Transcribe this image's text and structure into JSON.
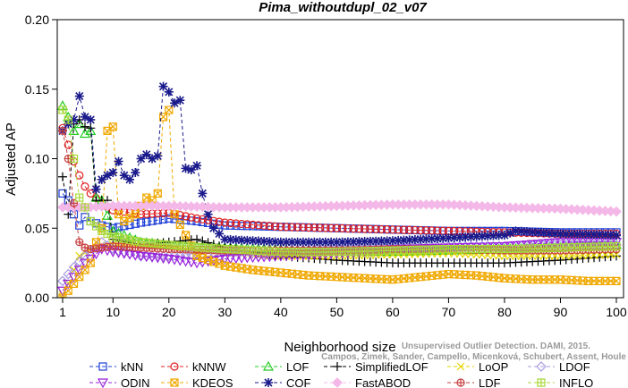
{
  "chart_data": {
    "type": "line",
    "title": "Pima_withoutdupl_02_v07",
    "xlabel": "Neighborhood size",
    "ylabel": "Adjusted AP",
    "xlim": [
      1,
      100
    ],
    "ylim": [
      0,
      0.2
    ],
    "x_ticks": [
      1,
      10,
      20,
      30,
      40,
      50,
      60,
      70,
      80,
      90,
      100
    ],
    "y_ticks": [
      0.0,
      0.05,
      0.1,
      0.15,
      0.2
    ],
    "y_tick_labels": [
      "0.00",
      "0.05",
      "0.10",
      "0.15",
      "0.20"
    ],
    "grid": false,
    "legend_position": "bottom",
    "watermark": [
      "Campos, Zimek, Sander, Campello, Micenková, Schubert, Assent, Houle",
      "Unsupervised Outlier Detection. DAMI, 2015."
    ],
    "series": [
      {
        "name": "kNN",
        "color": "#1f3fd6",
        "marker": "square",
        "points": [
          [
            1,
            0.075
          ],
          [
            2,
            0.07
          ],
          [
            3,
            0.06
          ],
          [
            4,
            0.052
          ],
          [
            5,
            0.058
          ],
          [
            6,
            0.055
          ],
          [
            8,
            0.052
          ],
          [
            10,
            0.05
          ],
          [
            15,
            0.054
          ],
          [
            20,
            0.057
          ],
          [
            25,
            0.055
          ],
          [
            30,
            0.052
          ],
          [
            40,
            0.051
          ],
          [
            50,
            0.05
          ],
          [
            60,
            0.049
          ],
          [
            70,
            0.048
          ],
          [
            80,
            0.048
          ],
          [
            90,
            0.047
          ],
          [
            100,
            0.047
          ]
        ]
      },
      {
        "name": "kNNW",
        "color": "#e01f1f",
        "marker": "circle",
        "points": [
          [
            1,
            0.122
          ],
          [
            2,
            0.11
          ],
          [
            3,
            0.098
          ],
          [
            4,
            0.088
          ],
          [
            5,
            0.08
          ],
          [
            6,
            0.075
          ],
          [
            8,
            0.068
          ],
          [
            10,
            0.063
          ],
          [
            15,
            0.06
          ],
          [
            20,
            0.061
          ],
          [
            25,
            0.057
          ],
          [
            30,
            0.054
          ],
          [
            40,
            0.051
          ],
          [
            50,
            0.05
          ],
          [
            60,
            0.049
          ],
          [
            70,
            0.048
          ],
          [
            80,
            0.047
          ],
          [
            90,
            0.046
          ],
          [
            100,
            0.046
          ]
        ]
      },
      {
        "name": "LOF",
        "color": "#22cc22",
        "marker": "triangle-up",
        "points": [
          [
            1,
            0.138
          ],
          [
            2,
            0.13
          ],
          [
            3,
            0.12
          ],
          [
            4,
            0.125
          ],
          [
            5,
            0.118
          ],
          [
            6,
            0.12
          ],
          [
            7,
            0.072
          ],
          [
            8,
            0.07
          ],
          [
            10,
            0.048
          ],
          [
            15,
            0.04
          ],
          [
            20,
            0.038
          ],
          [
            30,
            0.036
          ],
          [
            40,
            0.035
          ],
          [
            50,
            0.033
          ],
          [
            60,
            0.033
          ],
          [
            70,
            0.034
          ],
          [
            80,
            0.035
          ],
          [
            90,
            0.036
          ],
          [
            100,
            0.038
          ]
        ]
      },
      {
        "name": "SimplifiedLOF",
        "color": "#000000",
        "marker": "plus",
        "points": [
          [
            1,
            0.087
          ],
          [
            2,
            0.06
          ],
          [
            3,
            0.125
          ],
          [
            4,
            0.128
          ],
          [
            5,
            0.123
          ],
          [
            6,
            0.122
          ],
          [
            7,
            0.07
          ],
          [
            8,
            0.07
          ],
          [
            9,
            0.07
          ],
          [
            10,
            0.042
          ],
          [
            15,
            0.038
          ],
          [
            20,
            0.04
          ],
          [
            25,
            0.042
          ],
          [
            30,
            0.036
          ],
          [
            40,
            0.03
          ],
          [
            50,
            0.027
          ],
          [
            60,
            0.025
          ],
          [
            70,
            0.025
          ],
          [
            80,
            0.025
          ],
          [
            90,
            0.027
          ],
          [
            100,
            0.03
          ]
        ]
      },
      {
        "name": "LoOP",
        "color": "#e6d400",
        "marker": "x",
        "points": [
          [
            1,
            0.002
          ],
          [
            2,
            0.01
          ],
          [
            3,
            0.02
          ],
          [
            4,
            0.03
          ],
          [
            6,
            0.035
          ],
          [
            8,
            0.037
          ],
          [
            10,
            0.038
          ],
          [
            20,
            0.036
          ],
          [
            30,
            0.032
          ],
          [
            40,
            0.03
          ],
          [
            50,
            0.03
          ],
          [
            60,
            0.031
          ],
          [
            70,
            0.032
          ],
          [
            80,
            0.03
          ],
          [
            90,
            0.03
          ],
          [
            100,
            0.031
          ]
        ]
      },
      {
        "name": "LDOF",
        "color": "#a89ae0",
        "marker": "diamond",
        "points": [
          [
            1,
            0.012
          ],
          [
            3,
            0.022
          ],
          [
            5,
            0.03
          ],
          [
            8,
            0.04
          ],
          [
            10,
            0.035
          ],
          [
            15,
            0.03
          ],
          [
            20,
            0.03
          ],
          [
            30,
            0.033
          ],
          [
            40,
            0.034
          ],
          [
            50,
            0.035
          ],
          [
            60,
            0.036
          ],
          [
            70,
            0.037
          ],
          [
            80,
            0.037
          ],
          [
            90,
            0.038
          ],
          [
            100,
            0.038
          ]
        ]
      },
      {
        "name": "ODIN",
        "color": "#9922dd",
        "marker": "triangle-down",
        "points": [
          [
            1,
            0.005
          ],
          [
            2,
            0.01
          ],
          [
            3,
            0.015
          ],
          [
            4,
            0.02
          ],
          [
            5,
            0.025
          ],
          [
            6,
            0.028
          ],
          [
            8,
            0.035
          ],
          [
            10,
            0.033
          ],
          [
            15,
            0.03
          ],
          [
            20,
            0.028
          ],
          [
            25,
            0.025
          ],
          [
            30,
            0.028
          ],
          [
            40,
            0.03
          ],
          [
            50,
            0.032
          ],
          [
            60,
            0.035
          ],
          [
            70,
            0.036
          ],
          [
            80,
            0.037
          ],
          [
            90,
            0.04
          ],
          [
            100,
            0.04
          ]
        ]
      },
      {
        "name": "KDEOS",
        "color": "#f0a800",
        "marker": "square-x",
        "points": [
          [
            1,
            0.0
          ],
          [
            2,
            0.005
          ],
          [
            3,
            0.01
          ],
          [
            4,
            0.015
          ],
          [
            5,
            0.02
          ],
          [
            6,
            0.025
          ],
          [
            7,
            0.04
          ],
          [
            8,
            0.05
          ],
          [
            9,
            0.12
          ],
          [
            10,
            0.123
          ],
          [
            11,
            0.06
          ],
          [
            12,
            0.055
          ],
          [
            14,
            0.06
          ],
          [
            16,
            0.072
          ],
          [
            17,
            0.07
          ],
          [
            18,
            0.075
          ],
          [
            19,
            0.13
          ],
          [
            20,
            0.135
          ],
          [
            21,
            0.06
          ],
          [
            25,
            0.03
          ],
          [
            30,
            0.023
          ],
          [
            35,
            0.02
          ],
          [
            40,
            0.018
          ],
          [
            45,
            0.016
          ],
          [
            50,
            0.015
          ],
          [
            55,
            0.014
          ],
          [
            60,
            0.013
          ],
          [
            65,
            0.015
          ],
          [
            70,
            0.017
          ],
          [
            75,
            0.016
          ],
          [
            80,
            0.014
          ],
          [
            85,
            0.013
          ],
          [
            90,
            0.013
          ],
          [
            95,
            0.012
          ],
          [
            100,
            0.012
          ]
        ]
      },
      {
        "name": "COF",
        "color": "#1a1a8c",
        "marker": "star",
        "points": [
          [
            1,
            0.12
          ],
          [
            2,
            0.125
          ],
          [
            3,
            0.128
          ],
          [
            4,
            0.145
          ],
          [
            5,
            0.13
          ],
          [
            6,
            0.128
          ],
          [
            7,
            0.078
          ],
          [
            8,
            0.085
          ],
          [
            9,
            0.088
          ],
          [
            10,
            0.09
          ],
          [
            11,
            0.098
          ],
          [
            12,
            0.088
          ],
          [
            13,
            0.085
          ],
          [
            14,
            0.09
          ],
          [
            15,
            0.1
          ],
          [
            16,
            0.103
          ],
          [
            17,
            0.1
          ],
          [
            18,
            0.102
          ],
          [
            19,
            0.152
          ],
          [
            20,
            0.148
          ],
          [
            21,
            0.14
          ],
          [
            22,
            0.142
          ],
          [
            23,
            0.093
          ],
          [
            24,
            0.092
          ],
          [
            25,
            0.095
          ],
          [
            26,
            0.075
          ],
          [
            27,
            0.06
          ],
          [
            28,
            0.05
          ],
          [
            30,
            0.042
          ],
          [
            40,
            0.04
          ],
          [
            50,
            0.04
          ],
          [
            60,
            0.041
          ],
          [
            70,
            0.043
          ],
          [
            80,
            0.045
          ],
          [
            82,
            0.048
          ],
          [
            90,
            0.046
          ],
          [
            100,
            0.045
          ]
        ]
      },
      {
        "name": "FastABOD",
        "color": "#f4b8e8",
        "marker": "diamond-filled",
        "points": [
          [
            1,
            0.065
          ],
          [
            5,
            0.065
          ],
          [
            10,
            0.066
          ],
          [
            20,
            0.066
          ],
          [
            30,
            0.065
          ],
          [
            40,
            0.065
          ],
          [
            50,
            0.066
          ],
          [
            60,
            0.067
          ],
          [
            70,
            0.067
          ],
          [
            80,
            0.065
          ],
          [
            90,
            0.064
          ],
          [
            100,
            0.062
          ]
        ]
      },
      {
        "name": "LDF",
        "color": "#c84040",
        "marker": "circle-plus",
        "points": [
          [
            1,
            0.12
          ],
          [
            2,
            0.1
          ],
          [
            3,
            0.068
          ],
          [
            4,
            0.04
          ],
          [
            5,
            0.036
          ],
          [
            6,
            0.035
          ],
          [
            8,
            0.036
          ],
          [
            10,
            0.037
          ],
          [
            15,
            0.036
          ],
          [
            20,
            0.035
          ],
          [
            30,
            0.034
          ],
          [
            40,
            0.034
          ],
          [
            50,
            0.034
          ],
          [
            60,
            0.035
          ],
          [
            70,
            0.035
          ],
          [
            80,
            0.034
          ],
          [
            90,
            0.034
          ],
          [
            100,
            0.035
          ]
        ]
      },
      {
        "name": "INFLO",
        "color": "#a8d838",
        "marker": "square-plus",
        "points": [
          [
            1,
            0.135
          ],
          [
            2,
            0.128
          ],
          [
            3,
            0.1
          ],
          [
            4,
            0.072
          ],
          [
            5,
            0.065
          ],
          [
            6,
            0.055
          ],
          [
            8,
            0.048
          ],
          [
            10,
            0.044
          ],
          [
            15,
            0.04
          ],
          [
            20,
            0.038
          ],
          [
            30,
            0.035
          ],
          [
            40,
            0.033
          ],
          [
            50,
            0.033
          ],
          [
            60,
            0.034
          ],
          [
            70,
            0.035
          ],
          [
            80,
            0.035
          ],
          [
            90,
            0.036
          ],
          [
            100,
            0.037
          ]
        ]
      }
    ]
  }
}
